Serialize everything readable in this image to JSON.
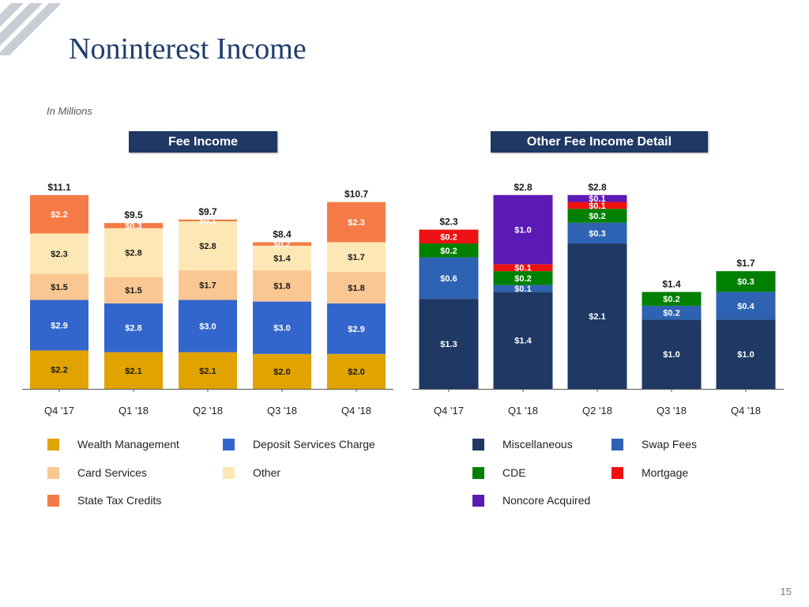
{
  "slide": {
    "title": "Noninterest Income",
    "units_note": "In Millions",
    "page_number": "15"
  },
  "colors": {
    "wealth_management": "#e0a300",
    "deposit_services": "#3366cc",
    "card_services": "#fac792",
    "other": "#fde8b5",
    "state_tax_credits": "#f47b45",
    "miscellaneous": "#1f3864",
    "swap_fees": "#2e62b2",
    "cde": "#008000",
    "mortgage": "#ee1111",
    "noncore_acquired": "#5b1ab3",
    "header_bg": "#1f3864"
  },
  "chart_data": [
    {
      "type": "bar",
      "stacked": true,
      "title": "Fee Income",
      "categories": [
        "Q4 '17",
        "Q1 '18",
        "Q2 '18",
        "Q3 '18",
        "Q4 '18"
      ],
      "ylim": [
        0,
        11.5
      ],
      "totals": [
        11.1,
        9.5,
        9.7,
        8.4,
        10.7
      ],
      "total_labels": [
        "$11.1",
        "$9.5",
        "$9.7",
        "$8.4",
        "$10.7"
      ],
      "series": [
        {
          "name": "Wealth Management",
          "color_key": "wealth_management",
          "values": [
            2.2,
            2.1,
            2.1,
            2.0,
            2.0
          ],
          "labels": [
            "$2.2",
            "$2.1",
            "$2.1",
            "$2.0",
            "$2.0"
          ]
        },
        {
          "name": "Deposit Services Charge",
          "color_key": "deposit_services",
          "values": [
            2.9,
            2.8,
            3.0,
            3.0,
            2.9
          ],
          "labels": [
            "$2.9",
            "$2.8",
            "$3.0",
            "$3.0",
            "$2.9"
          ]
        },
        {
          "name": "Card Services",
          "color_key": "card_services",
          "values": [
            1.5,
            1.5,
            1.7,
            1.8,
            1.8
          ],
          "labels": [
            "$1.5",
            "$1.5",
            "$1.7",
            "$1.8",
            "$1.8"
          ]
        },
        {
          "name": "Other",
          "color_key": "other",
          "values": [
            2.3,
            2.8,
            2.8,
            1.4,
            1.7
          ],
          "labels": [
            "$2.3",
            "$2.8",
            "$2.8",
            "$1.4",
            "$1.7"
          ]
        },
        {
          "name": "State Tax Credits",
          "color_key": "state_tax_credits",
          "values": [
            2.2,
            0.3,
            0.1,
            0.2,
            2.3
          ],
          "labels": [
            "$2.2",
            "$0.3",
            "$0.1",
            "$0.2",
            "$2.3"
          ]
        }
      ]
    },
    {
      "type": "bar",
      "stacked": true,
      "title": "Other Fee Income Detail",
      "categories": [
        "Q4 '17",
        "Q1 '18",
        "Q2 '18",
        "Q3 '18",
        "Q4 '18"
      ],
      "ylim": [
        0,
        2.9
      ],
      "totals": [
        2.3,
        2.8,
        2.8,
        1.4,
        1.7
      ],
      "total_labels": [
        "$2.3",
        "$2.8",
        "$2.8",
        "$1.4",
        "$1.7"
      ],
      "series": [
        {
          "name": "Miscellaneous",
          "color_key": "miscellaneous",
          "values": [
            1.3,
            1.4,
            2.1,
            1.0,
            1.0
          ],
          "labels": [
            "$1.3",
            "$1.4",
            "$2.1",
            "$1.0",
            "$1.0"
          ]
        },
        {
          "name": "Swap Fees",
          "color_key": "swap_fees",
          "values": [
            0.6,
            0.1,
            0.3,
            0.2,
            0.4
          ],
          "labels": [
            "$0.6",
            "$0.1",
            "$0.3",
            "$0.2",
            "$0.4"
          ]
        },
        {
          "name": "CDE",
          "color_key": "cde",
          "values": [
            0.2,
            0.2,
            0.2,
            0.2,
            0.3
          ],
          "labels": [
            "$0.2",
            "$0.2",
            "$0.2",
            "$0.2",
            "$0.3"
          ]
        },
        {
          "name": "Mortgage",
          "color_key": "mortgage",
          "values": [
            0.2,
            0.1,
            0.1,
            0,
            0
          ],
          "labels": [
            "$0.2",
            "$0.1",
            "$0.1",
            "",
            ""
          ]
        },
        {
          "name": "Noncore Acquired",
          "color_key": "noncore_acquired",
          "values": [
            0,
            1.0,
            0.1,
            0,
            0
          ],
          "labels": [
            "",
            "$1.0",
            "$0.1",
            "",
            ""
          ]
        }
      ]
    }
  ],
  "legend": {
    "left": [
      {
        "label": "Wealth Management",
        "color_key": "wealth_management"
      },
      {
        "label": "Deposit Services Charge",
        "color_key": "deposit_services"
      },
      {
        "label": "Card Services",
        "color_key": "card_services"
      },
      {
        "label": "Other",
        "color_key": "other"
      },
      {
        "label": "State Tax Credits",
        "color_key": "state_tax_credits"
      }
    ],
    "right": [
      {
        "label": "Miscellaneous",
        "color_key": "miscellaneous"
      },
      {
        "label": "Swap Fees",
        "color_key": "swap_fees"
      },
      {
        "label": "CDE",
        "color_key": "cde"
      },
      {
        "label": "Mortgage",
        "color_key": "mortgage"
      },
      {
        "label": "Noncore Acquired",
        "color_key": "noncore_acquired"
      }
    ]
  }
}
